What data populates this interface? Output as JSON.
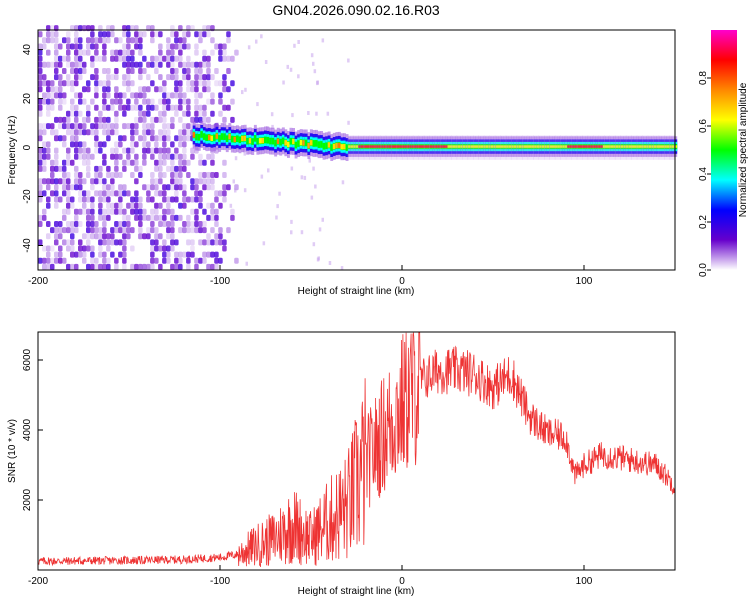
{
  "title": "GN04.2026.090.02.16.R03",
  "chart_data": [
    {
      "type": "heatmap",
      "name": "spectrogram",
      "xlabel": "Height of straight line (km)",
      "ylabel": "Frequency (Hz)",
      "xlim": [
        -200,
        150
      ],
      "ylim": [
        -50,
        48
      ],
      "xticks": [
        -200,
        -100,
        0,
        100
      ],
      "yticks": [
        -40,
        -20,
        0,
        20,
        40
      ],
      "colorbar": {
        "label": "Normalized spectral amplitude",
        "range": [
          0,
          1
        ],
        "ticks": [
          "0.0",
          "0.2",
          "0.4",
          "0.6",
          "0.8"
        ],
        "colors": [
          "#ffffff",
          "#6600cc",
          "#0000ff",
          "#00ffff",
          "#00ff00",
          "#ffff00",
          "#ff8800",
          "#ff0000",
          "#ff00cc"
        ]
      },
      "features": {
        "noise_region_x": [
          -200,
          -110
        ],
        "diffuse_tail_x": [
          -110,
          -90
        ],
        "carrier_start_x": -115,
        "carrier_freq_at_start_hz": 5,
        "carrier_freq_at_end_hz": 0,
        "carrier_settles_x": -30,
        "strong_core_segments_x": [
          [
            -25,
            25
          ],
          [
            90,
            110
          ]
        ]
      }
    },
    {
      "type": "line",
      "name": "snr",
      "xlabel": "Height of straight line (km)",
      "ylabel": "SNR (10 * v/v)",
      "xlim": [
        -200,
        150
      ],
      "ylim": [
        0,
        6800
      ],
      "xticks": [
        -200,
        -100,
        0,
        100
      ],
      "yticks": [
        2000,
        4000,
        6000
      ],
      "series": [
        {
          "name": "SNR",
          "color": "#ee3333",
          "x": [
            -200,
            -180,
            -160,
            -140,
            -120,
            -100,
            -90,
            -80,
            -70,
            -60,
            -50,
            -40,
            -30,
            -20,
            -10,
            0,
            10,
            20,
            30,
            40,
            50,
            60,
            70,
            80,
            90,
            95,
            100,
            110,
            120,
            130,
            140,
            150
          ],
          "y": [
            250,
            260,
            270,
            280,
            300,
            360,
            450,
            700,
            900,
            1300,
            900,
            1400,
            1800,
            3000,
            3900,
            4700,
            5400,
            5700,
            5700,
            5600,
            5200,
            5600,
            4400,
            3900,
            3800,
            2700,
            3000,
            3300,
            3200,
            3100,
            3000,
            2400
          ]
        }
      ]
    }
  ]
}
